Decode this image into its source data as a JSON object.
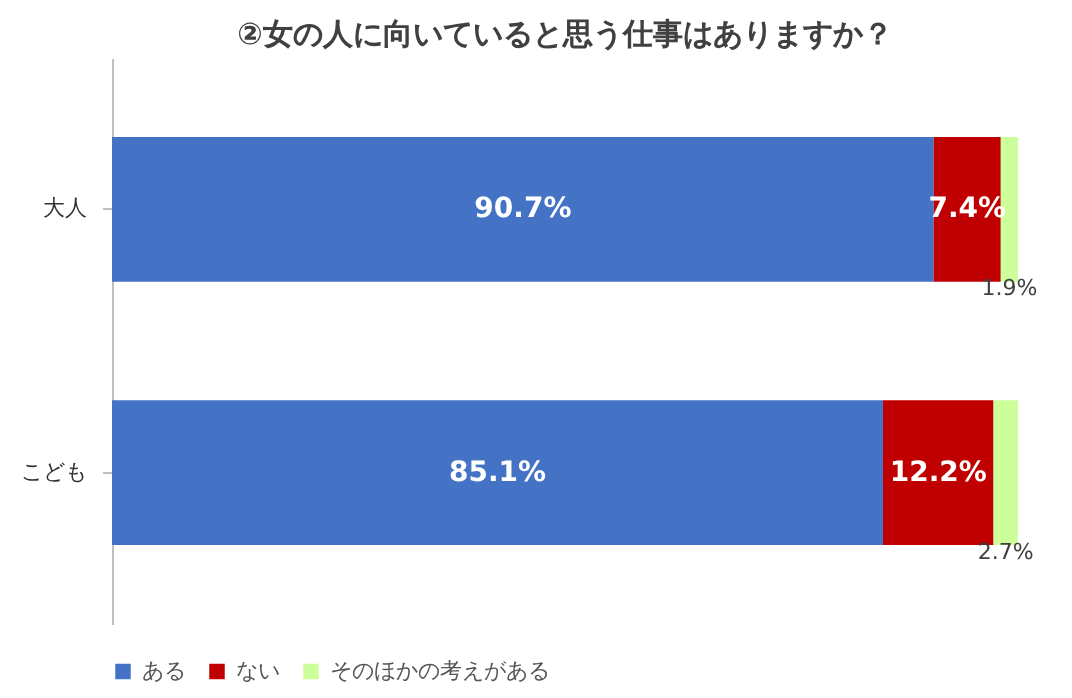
{
  "chart_data": {
    "type": "bar",
    "orientation": "horizontal",
    "stacked": true,
    "title": "②女の人に向いていると思う仕事はありますか？",
    "categories": [
      "大人",
      "こども"
    ],
    "series": [
      {
        "name": "ある",
        "color": "#4472c4",
        "values": [
          90.7,
          85.1
        ],
        "value_labels": [
          "90.7%",
          "85.1%"
        ]
      },
      {
        "name": "ない",
        "color": "#c00000",
        "values": [
          7.4,
          12.2
        ],
        "value_labels": [
          "7.4%",
          "12.2%"
        ]
      },
      {
        "name": "そのほかの考えがある",
        "color": "#ccff99",
        "values": [
          1.9,
          2.7
        ],
        "value_labels": [
          "1.9%",
          "2.7%"
        ]
      }
    ],
    "legend": "bottom",
    "tick_labels": "y",
    "grid": false
  }
}
